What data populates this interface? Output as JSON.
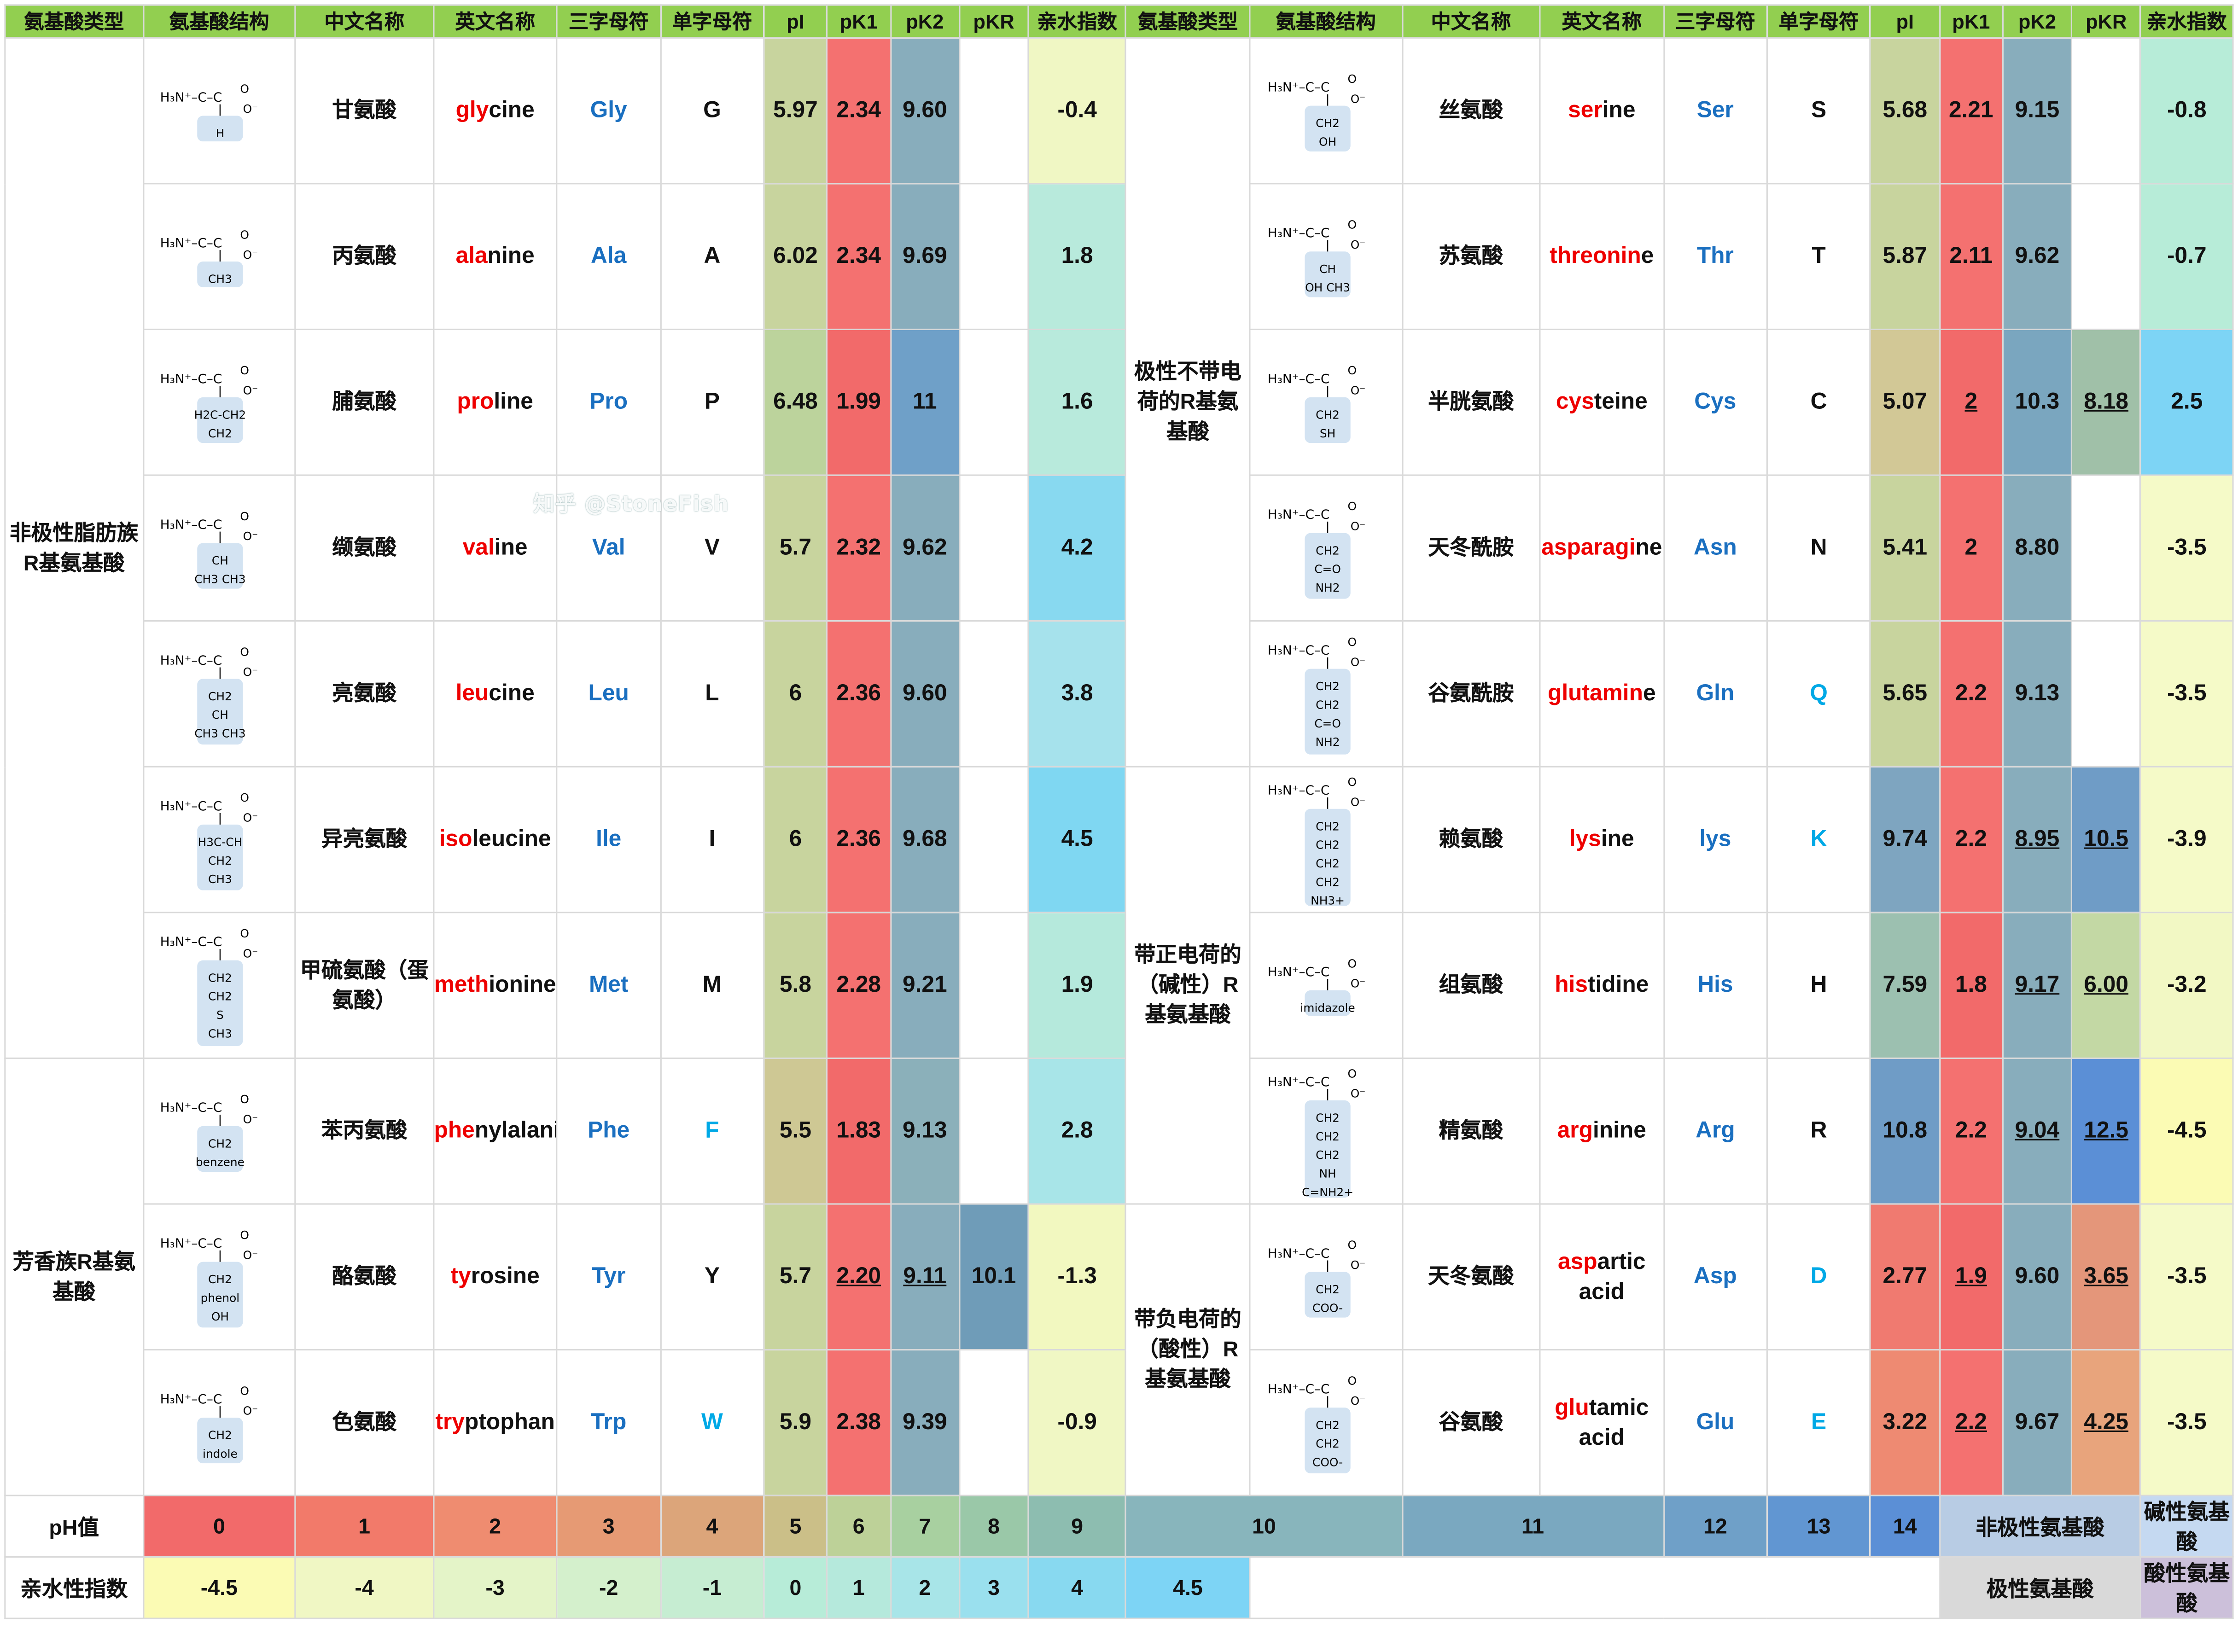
{
  "headers": [
    "氨基酸类型",
    "氨基酸结构",
    "中文名称",
    "英文名称",
    "三字母符",
    "单字母符",
    "pI",
    "pK1",
    "pK2",
    "pKR",
    "亲水指数",
    "氨基酸类型",
    "氨基酸结构",
    "中文名称",
    "英文名称",
    "三字母符",
    "单字母符",
    "pI",
    "pK1",
    "pK2",
    "pKR",
    "亲水指数"
  ],
  "group_types": {
    "nonpolar": "非极性脂肪族R基氨基酸",
    "aromatic": "芳香族R基氨基酸",
    "polar": "极性不带电荷的R基氨基酸",
    "positive": "带正电荷的（碱性）R基氨基酸",
    "negative": "带负电荷的（酸性）R基氨基酸"
  },
  "left": [
    {
      "zh": "甘氨酸",
      "en_hl": "gly",
      "en_rest": "cine",
      "three_hl": "",
      "three_rest": "Gly",
      "one": "G",
      "pI": "5.97",
      "pK1": "2.34",
      "pK2": "9.60",
      "pKR": "",
      "hyd": "-0.4",
      "struct": [
        "H3N+-C-COO-",
        "H"
      ],
      "colors": {
        "pI": "#c8d49e",
        "pK1": "#f47170",
        "pK2": "#88adbc",
        "pKR": "#ffffff",
        "hyd": "#f0f7c4"
      }
    },
    {
      "zh": "丙氨酸",
      "en_hl": "ala",
      "en_rest": "nine",
      "three_hl": "",
      "three_rest": "Ala",
      "one": "A",
      "pI": "6.02",
      "pK1": "2.34",
      "pK2": "9.69",
      "pKR": "",
      "hyd": "1.8",
      "struct": [
        "H3N+-C-COO-",
        "CH3"
      ],
      "colors": {
        "pI": "#c8d49e",
        "pK1": "#f47170",
        "pK2": "#88adbc",
        "pKR": "#ffffff",
        "hyd": "#b8eadc"
      }
    },
    {
      "zh": "脯氨酸",
      "en_hl": "pro",
      "en_rest": "line",
      "three_hl": "",
      "three_rest": "Pro",
      "one": "P",
      "pI": "6.48",
      "pK1": "1.99",
      "pK2": "11",
      "pKR": "",
      "hyd": "1.6",
      "struct": [
        "H2N+ ring",
        "H2C-CH2",
        "CH2"
      ],
      "colors": {
        "pI": "#bcd39c",
        "pK1": "#f26a6a",
        "pK2": "#6fa0c8",
        "pKR": "#ffffff",
        "hyd": "#b8eadc"
      }
    },
    {
      "zh": "缬氨酸",
      "en_hl": "val",
      "en_rest": "ine",
      "three_hl": "",
      "three_rest": "Val",
      "one": "V",
      "pI": "5.7",
      "pK1": "2.32",
      "pK2": "9.62",
      "pKR": "",
      "hyd": "4.2",
      "struct": [
        "H3N+-C-COO-",
        "CH",
        "CH3 CH3"
      ],
      "colors": {
        "pI": "#c8d49e",
        "pK1": "#f47170",
        "pK2": "#88adbc",
        "pKR": "#ffffff",
        "hyd": "#88d9f0"
      }
    },
    {
      "zh": "亮氨酸",
      "en_hl": "leu",
      "en_rest": "cine",
      "three_hl": "",
      "three_rest": "Leu",
      "one": "L",
      "pI": "6",
      "pK1": "2.36",
      "pK2": "9.60",
      "pKR": "",
      "hyd": "3.8",
      "struct": [
        "H3N+-C-COO-",
        "CH2",
        "CH",
        "CH3 CH3"
      ],
      "colors": {
        "pI": "#c8d49e",
        "pK1": "#f47170",
        "pK2": "#88adbc",
        "pKR": "#ffffff",
        "hyd": "#a6e2ec"
      }
    },
    {
      "zh": "异亮氨酸",
      "en_hl": "iso",
      "en_rest": "leucine",
      "three_hl": "",
      "three_rest": "Ile",
      "one": "I",
      "pI": "6",
      "pK1": "2.36",
      "pK2": "9.68",
      "pKR": "",
      "hyd": "4.5",
      "struct": [
        "H3N+-C-COO-",
        "H3C-CH",
        "CH2",
        "CH3"
      ],
      "colors": {
        "pI": "#c8d49e",
        "pK1": "#f47170",
        "pK2": "#88adbc",
        "pKR": "#ffffff",
        "hyd": "#7fd7f2"
      }
    },
    {
      "zh": "甲硫氨酸（蛋氨酸）",
      "en_hl": "meth",
      "en_rest": "ionine",
      "three_hl": "",
      "three_rest": "Met",
      "one": "M",
      "pI": "5.8",
      "pK1": "2.28",
      "pK2": "9.21",
      "pKR": "",
      "hyd": "1.9",
      "struct": [
        "H3N+-C-COO-",
        "CH2",
        "CH2",
        "S",
        "CH3"
      ],
      "colors": {
        "pI": "#c8d49e",
        "pK1": "#f47170",
        "pK2": "#88adbc",
        "pKR": "#ffffff",
        "hyd": "#b5e9dc"
      }
    },
    {
      "zh": "苯丙氨酸",
      "en_hl": "phe",
      "en_rest": "nylalanine",
      "three_hl": "",
      "three_rest": "Phe",
      "one": "F",
      "pI": "5.5",
      "pK1": "1.83",
      "pK2": "9.13",
      "pKR": "",
      "hyd": "2.8",
      "struct": [
        "H3N+-C-COO-",
        "CH2",
        "benzene"
      ],
      "colors": {
        "pI": "#cec894",
        "pK1": "#f26a6a",
        "pK2": "#8bb0ba",
        "pKR": "#ffffff",
        "hyd": "#a8e5e8"
      }
    },
    {
      "zh": "酪氨酸",
      "en_hl": "ty",
      "en_rest": "rosine",
      "three_hl": "",
      "three_rest": "Tyr",
      "one": "Y",
      "pI": "5.7",
      "pK1": "2.20",
      "pK2": "9.11",
      "pKR": "10.1",
      "hyd": "-1.3",
      "struct": [
        "H3N+-C-COO-",
        "CH2",
        "phenol",
        "OH"
      ],
      "colors": {
        "pI": "#c8d49e",
        "pK1": "#f47170",
        "pK2": "#88adbc",
        "pKR": "#6f9cb8",
        "hyd": "#f2f8c0"
      }
    },
    {
      "zh": "色氨酸",
      "en_hl": "try",
      "en_rest": "ptophan",
      "three_hl": "",
      "three_rest": "Trp",
      "one": "W",
      "pI": "5.9",
      "pK1": "2.38",
      "pK2": "9.39",
      "pKR": "",
      "hyd": "-0.9",
      "struct": [
        "H3N+-C-COO-",
        "CH2",
        "indole"
      ],
      "colors": {
        "pI": "#c8d49e",
        "pK1": "#f47170",
        "pK2": "#88adbc",
        "pKR": "#ffffff",
        "hyd": "#f0f7c4"
      }
    }
  ],
  "right": [
    {
      "zh": "丝氨酸",
      "en_hl": "ser",
      "en_rest": "ine",
      "three_hl": "",
      "three_rest": "Ser",
      "one": "S",
      "pI": "5.68",
      "pK1": "2.21",
      "pK2": "9.15",
      "pKR": "",
      "hyd": "-0.8",
      "struct": [
        "H3N+-C-COO-",
        "CH2",
        "OH"
      ],
      "colors": {
        "pI": "#c8d49e",
        "pK1": "#f47170",
        "pK2": "#88adbc",
        "pKR": "#ffffff",
        "hyd": "#b7ecd8"
      }
    },
    {
      "zh": "苏氨酸",
      "en_hl": "threonin",
      "en_rest": "e",
      "three_hl": "",
      "three_rest": "Thr",
      "one": "T",
      "pI": "5.87",
      "pK1": "2.11",
      "pK2": "9.62",
      "pKR": "",
      "hyd": "-0.7",
      "struct": [
        "H3N+-C-COO-",
        "CH",
        "OH CH3"
      ],
      "colors": {
        "pI": "#c8d49e",
        "pK1": "#f47170",
        "pK2": "#88adbc",
        "pKR": "#ffffff",
        "hyd": "#b7ecd8"
      }
    },
    {
      "zh": "半胱氨酸",
      "en_hl": "cys",
      "en_rest": "teine",
      "three_hl": "",
      "three_rest": "Cys",
      "one": "C",
      "pI": "5.07",
      "pK1": "2",
      "pK2": "10.3",
      "pKR": "8.18",
      "hyd": "2.5",
      "struct": [
        "H3N+-C-COO-",
        "CH2",
        "SH"
      ],
      "colors": {
        "pI": "#d2c896",
        "pK1": "#f26a6a",
        "pK2": "#7aa6bf",
        "pKR": "#a0c0a8",
        "hyd": "#7dd4f5"
      }
    },
    {
      "zh": "天冬酰胺",
      "en_hl": "asparagi",
      "en_rest": "ne",
      "three_hl": "",
      "three_rest": "Asn",
      "one": "N",
      "pI": "5.41",
      "pK1": "2",
      "pK2": "8.80",
      "pKR": "",
      "hyd": "-3.5",
      "struct": [
        "H3N+-C-COO-",
        "CH2",
        "C=O",
        "NH2"
      ],
      "colors": {
        "pI": "#c8d49e",
        "pK1": "#f47170",
        "pK2": "#88adbc",
        "pKR": "#ffffff",
        "hyd": "#f5fac8"
      }
    },
    {
      "zh": "谷氨酰胺",
      "en_hl": "glutamin",
      "en_rest": "e",
      "three_hl": "",
      "three_rest": "Gln",
      "one": "Q",
      "pI": "5.65",
      "pK1": "2.2",
      "pK2": "9.13",
      "pKR": "",
      "hyd": "-3.5",
      "struct": [
        "H3N+-C-COO-",
        "CH2",
        "CH2",
        "C=O",
        "NH2"
      ],
      "colors": {
        "pI": "#c8d49e",
        "pK1": "#f47170",
        "pK2": "#88adbc",
        "pKR": "#ffffff",
        "hyd": "#f5fac8"
      }
    },
    {
      "zh": "赖氨酸",
      "en_hl": "lys",
      "en_rest": "ine",
      "three_hl": "",
      "three_rest": "lys",
      "one": "K",
      "pI": "9.74",
      "pK1": "2.2",
      "pK2": "8.95",
      "pKR": "10.5",
      "hyd": "-3.9",
      "struct": [
        "H3N+-C-COO-",
        "CH2",
        "CH2",
        "CH2",
        "CH2",
        "NH3+"
      ],
      "colors": {
        "pI": "#7ea5c0",
        "pK1": "#f47170",
        "pK2": "#88adbc",
        "pKR": "#6f9cc6",
        "hyd": "#f5fac8"
      }
    },
    {
      "zh": "组氨酸",
      "en_hl": "his",
      "en_rest": "tidine",
      "three_hl": "",
      "three_rest": "His",
      "one": "H",
      "pI": "7.59",
      "pK1": "1.8",
      "pK2": "9.17",
      "pKR": "6.00",
      "hyd": "-3.2",
      "struct": [
        "H3N+-C-COO-",
        "imidazole"
      ],
      "colors": {
        "pI": "#9cc0b0",
        "pK1": "#f26a6a",
        "pK2": "#88adbc",
        "pKR": "#c3d8a4",
        "hyd": "#f2f8c4"
      }
    },
    {
      "zh": "精氨酸",
      "en_hl": "arg",
      "en_rest": "inine",
      "three_hl": "",
      "three_rest": "Arg",
      "one": "R",
      "pI": "10.8",
      "pK1": "2.2",
      "pK2": "9.04",
      "pKR": "12.5",
      "hyd": "-4.5",
      "struct": [
        "H3N+-C-COO-",
        "CH2",
        "CH2",
        "CH2",
        "NH",
        "C=NH2+",
        "NH2"
      ],
      "colors": {
        "pI": "#6f9cc6",
        "pK1": "#f47170",
        "pK2": "#88adbc",
        "pKR": "#5b8fd6",
        "hyd": "#fbfbb4"
      }
    },
    {
      "zh": "天冬氨酸",
      "en_hl": "asp",
      "en_rest": "artic acid",
      "three_hl": "",
      "three_rest": "Asp",
      "one": "D",
      "pI": "2.77",
      "pK1": "1.9",
      "pK2": "9.60",
      "pKR": "3.65",
      "hyd": "-3.5",
      "struct": [
        "H3N+-C-COO-",
        "CH2",
        "COO-"
      ],
      "colors": {
        "pI": "#f07a70",
        "pK1": "#f26a6a",
        "pK2": "#88adbc",
        "pKR": "#e4967a",
        "hyd": "#f5fac8"
      }
    },
    {
      "zh": "谷氨酸",
      "en_hl": "glu",
      "en_rest": "tamic acid",
      "three_hl": "",
      "three_rest": "Glu",
      "one": "E",
      "pI": "3.22",
      "pK1": "2.2",
      "pK2": "9.67",
      "pKR": "4.25",
      "hyd": "-3.5",
      "struct": [
        "H3N+-C-COO-",
        "CH2",
        "CH2",
        "COO-"
      ],
      "colors": {
        "pI": "#ee8a72",
        "pK1": "#f47170",
        "pK2": "#88adbc",
        "pKR": "#e8a47c",
        "hyd": "#f5fac8"
      }
    }
  ],
  "ph_scale": {
    "label": "pH值",
    "values": [
      "0",
      "1",
      "2",
      "3",
      "4",
      "5",
      "6",
      "7",
      "8",
      "9",
      "10",
      "11",
      "12",
      "13",
      "14"
    ],
    "colors": [
      "#f26a6a",
      "#f27a6a",
      "#ef8c70",
      "#e69a74",
      "#dca57a",
      "#cbbf88",
      "#bdd198",
      "#a8d0a0",
      "#9ac8a8",
      "#8dbdb0",
      "#88b5bc",
      "#7aa8c0",
      "#6fa0c8",
      "#6196d2",
      "#5b8fd6"
    ]
  },
  "hyd_scale": {
    "label": "亲水性指数",
    "values": [
      "-4.5",
      "-4",
      "-3",
      "-2",
      "-1",
      "0",
      "1",
      "2",
      "3",
      "4",
      "4.5"
    ],
    "colors": [
      "#fbfbb4",
      "#f0f7c4",
      "#e4f4c8",
      "#d4f0cc",
      "#c6edd2",
      "#b7ecd8",
      "#b5e9dc",
      "#a8e5e8",
      "#9ae0ee",
      "#88d9f0",
      "#7dd4f5"
    ]
  },
  "legend": {
    "nonpolar": "非极性氨基酸",
    "basic": "碱性氨基酸",
    "polar": "极性氨基酸",
    "acidic": "酸性氨基酸"
  },
  "watermark": "知乎 @StoneFish"
}
